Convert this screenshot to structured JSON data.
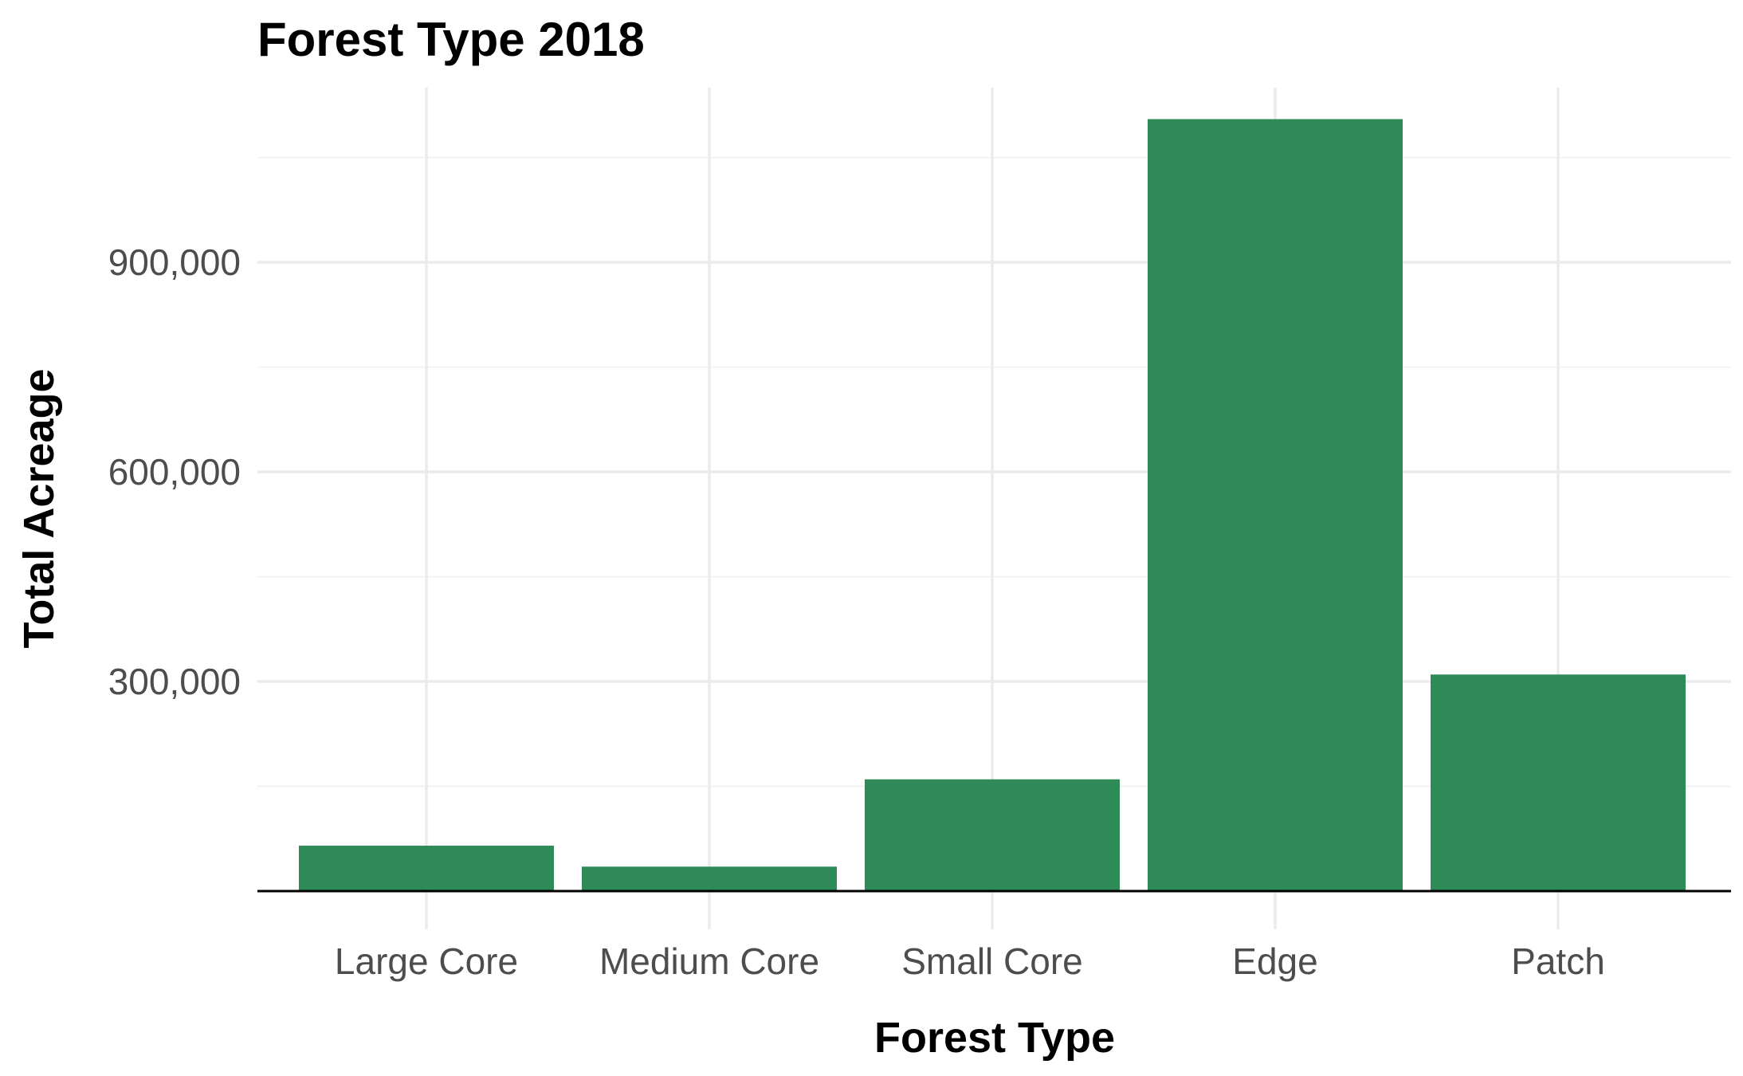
{
  "chart_data": {
    "type": "bar",
    "title": "Forest Type 2018",
    "xlabel": "Forest Type",
    "ylabel": "Total Acreage",
    "categories": [
      "Large Core",
      "Medium Core",
      "Small Core",
      "Edge",
      "Patch"
    ],
    "values": [
      65000,
      35000,
      160000,
      1105000,
      310000
    ],
    "ylim": [
      0,
      1150000
    ],
    "yticks": [
      300000,
      600000,
      900000
    ],
    "ytick_labels": [
      "300,000",
      "600,000",
      "900,000"
    ],
    "bar_color": "#2e8b57",
    "grid": true,
    "legend": "none"
  }
}
